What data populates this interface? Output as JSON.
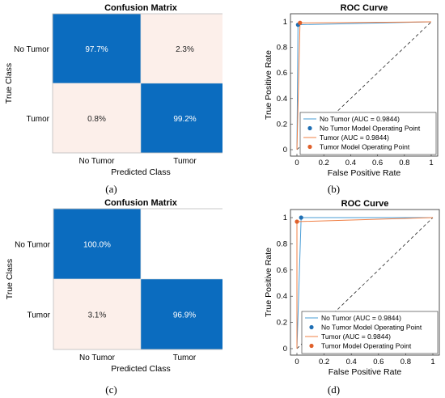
{
  "colors": {
    "high": "#0b6cbf",
    "low": "#fcefea",
    "empty": "#ffffff",
    "text_on_dark": "#ffffff",
    "text_on_light": "#262626",
    "roc_no_tumor": "#4a9dd6",
    "roc_tumor": "#f08046",
    "point_no_tumor": "#1f6fb4",
    "point_tumor": "#e0602a"
  },
  "panels": {
    "a": {
      "caption": "(a)"
    },
    "b": {
      "caption": "(b)"
    },
    "c": {
      "caption": "(c)"
    },
    "d": {
      "caption": "(d)"
    }
  },
  "chart_data": [
    {
      "type": "heatmap",
      "panel": "a",
      "title": "Confusion Matrix",
      "xlabel": "Predicted Class",
      "ylabel": "True Class",
      "x_categories": [
        "No Tumor",
        "Tumor"
      ],
      "y_categories": [
        "No Tumor",
        "Tumor"
      ],
      "cells": [
        [
          {
            "label": "97.7%",
            "value": 97.7
          },
          {
            "label": "2.3%",
            "value": 2.3
          }
        ],
        [
          {
            "label": "0.8%",
            "value": 0.8
          },
          {
            "label": "99.2%",
            "value": 99.2
          }
        ]
      ]
    },
    {
      "type": "line",
      "panel": "b",
      "title": "ROC Curve",
      "xlabel": "False Positive Rate",
      "ylabel": "True Positive Rate",
      "xlim": [
        0,
        1
      ],
      "ylim": [
        0,
        1
      ],
      "xticks": [
        "0",
        "0.2",
        "0.4",
        "0.6",
        "0.8",
        "1"
      ],
      "yticks": [
        "0",
        "0.2",
        "0.4",
        "0.6",
        "0.8",
        "1"
      ],
      "legend_position": "bottom-right",
      "series": [
        {
          "name": "No Tumor (AUC = 0.9844)",
          "points": [
            [
              0,
              0
            ],
            [
              0.008,
              0.977
            ],
            [
              1,
              1
            ]
          ]
        },
        {
          "name": "Tumor (AUC = 0.9844)",
          "points": [
            [
              0,
              0
            ],
            [
              0.023,
              0.992
            ],
            [
              1,
              1
            ]
          ]
        }
      ],
      "operating_points": [
        {
          "name": "No Tumor Model Operating Point",
          "x": 0.008,
          "y": 0.977
        },
        {
          "name": "Tumor Model Operating Point",
          "x": 0.023,
          "y": 0.992
        }
      ],
      "reference_line": [
        [
          0,
          0
        ],
        [
          1,
          1
        ]
      ]
    },
    {
      "type": "heatmap",
      "panel": "c",
      "title": "Confusion Matrix",
      "xlabel": "Predicted Class",
      "ylabel": "True Class",
      "x_categories": [
        "No Tumor",
        "Tumor"
      ],
      "y_categories": [
        "No Tumor",
        "Tumor"
      ],
      "cells": [
        [
          {
            "label": "100.0%",
            "value": 100.0
          },
          {
            "label": "",
            "value": 0
          }
        ],
        [
          {
            "label": "3.1%",
            "value": 3.1
          },
          {
            "label": "96.9%",
            "value": 96.9
          }
        ]
      ]
    },
    {
      "type": "line",
      "panel": "d",
      "title": "ROC Curve",
      "xlabel": "False Positive Rate",
      "ylabel": "True Positive Rate",
      "xlim": [
        0,
        1
      ],
      "ylim": [
        0,
        1
      ],
      "xticks": [
        "0",
        "0.2",
        "0.4",
        "0.6",
        "0.8",
        "1"
      ],
      "yticks": [
        "0",
        "0.2",
        "0.4",
        "0.6",
        "0.8",
        "1"
      ],
      "legend_position": "bottom-right",
      "series": [
        {
          "name": "No Tumor (AUC = 0.9844)",
          "points": [
            [
              0,
              0
            ],
            [
              0.031,
              1.0
            ],
            [
              1,
              1
            ]
          ]
        },
        {
          "name": "Tumor (AUC = 0.9844)",
          "points": [
            [
              0,
              0
            ],
            [
              0,
              0.969
            ],
            [
              1,
              1
            ]
          ]
        }
      ],
      "operating_points": [
        {
          "name": "No Tumor Model Operating Point",
          "x": 0.031,
          "y": 1.0
        },
        {
          "name": "Tumor Model Operating Point",
          "x": 0,
          "y": 0.969
        }
      ],
      "reference_line": [
        [
          0,
          0
        ],
        [
          1,
          1
        ]
      ]
    }
  ]
}
